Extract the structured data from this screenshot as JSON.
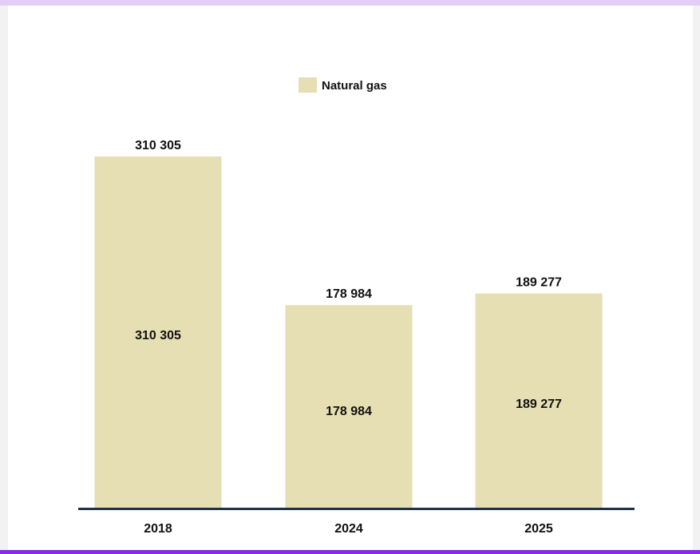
{
  "colors": {
    "bar": "#e6dfb3",
    "axis": "#1f3347",
    "text": "#111111"
  },
  "chart_data": {
    "type": "bar",
    "categories": [
      "2018",
      "2024",
      "2025"
    ],
    "series": [
      {
        "name": "Natural gas",
        "values": [
          310305,
          178984,
          189277
        ]
      }
    ],
    "value_labels": [
      "310 305",
      "178 984",
      "189 277"
    ],
    "title": "",
    "xlabel": "",
    "ylabel": "",
    "ylim": [
      0,
      310305
    ],
    "grid": false,
    "legend": "top-center",
    "y_axis_visible": false
  }
}
